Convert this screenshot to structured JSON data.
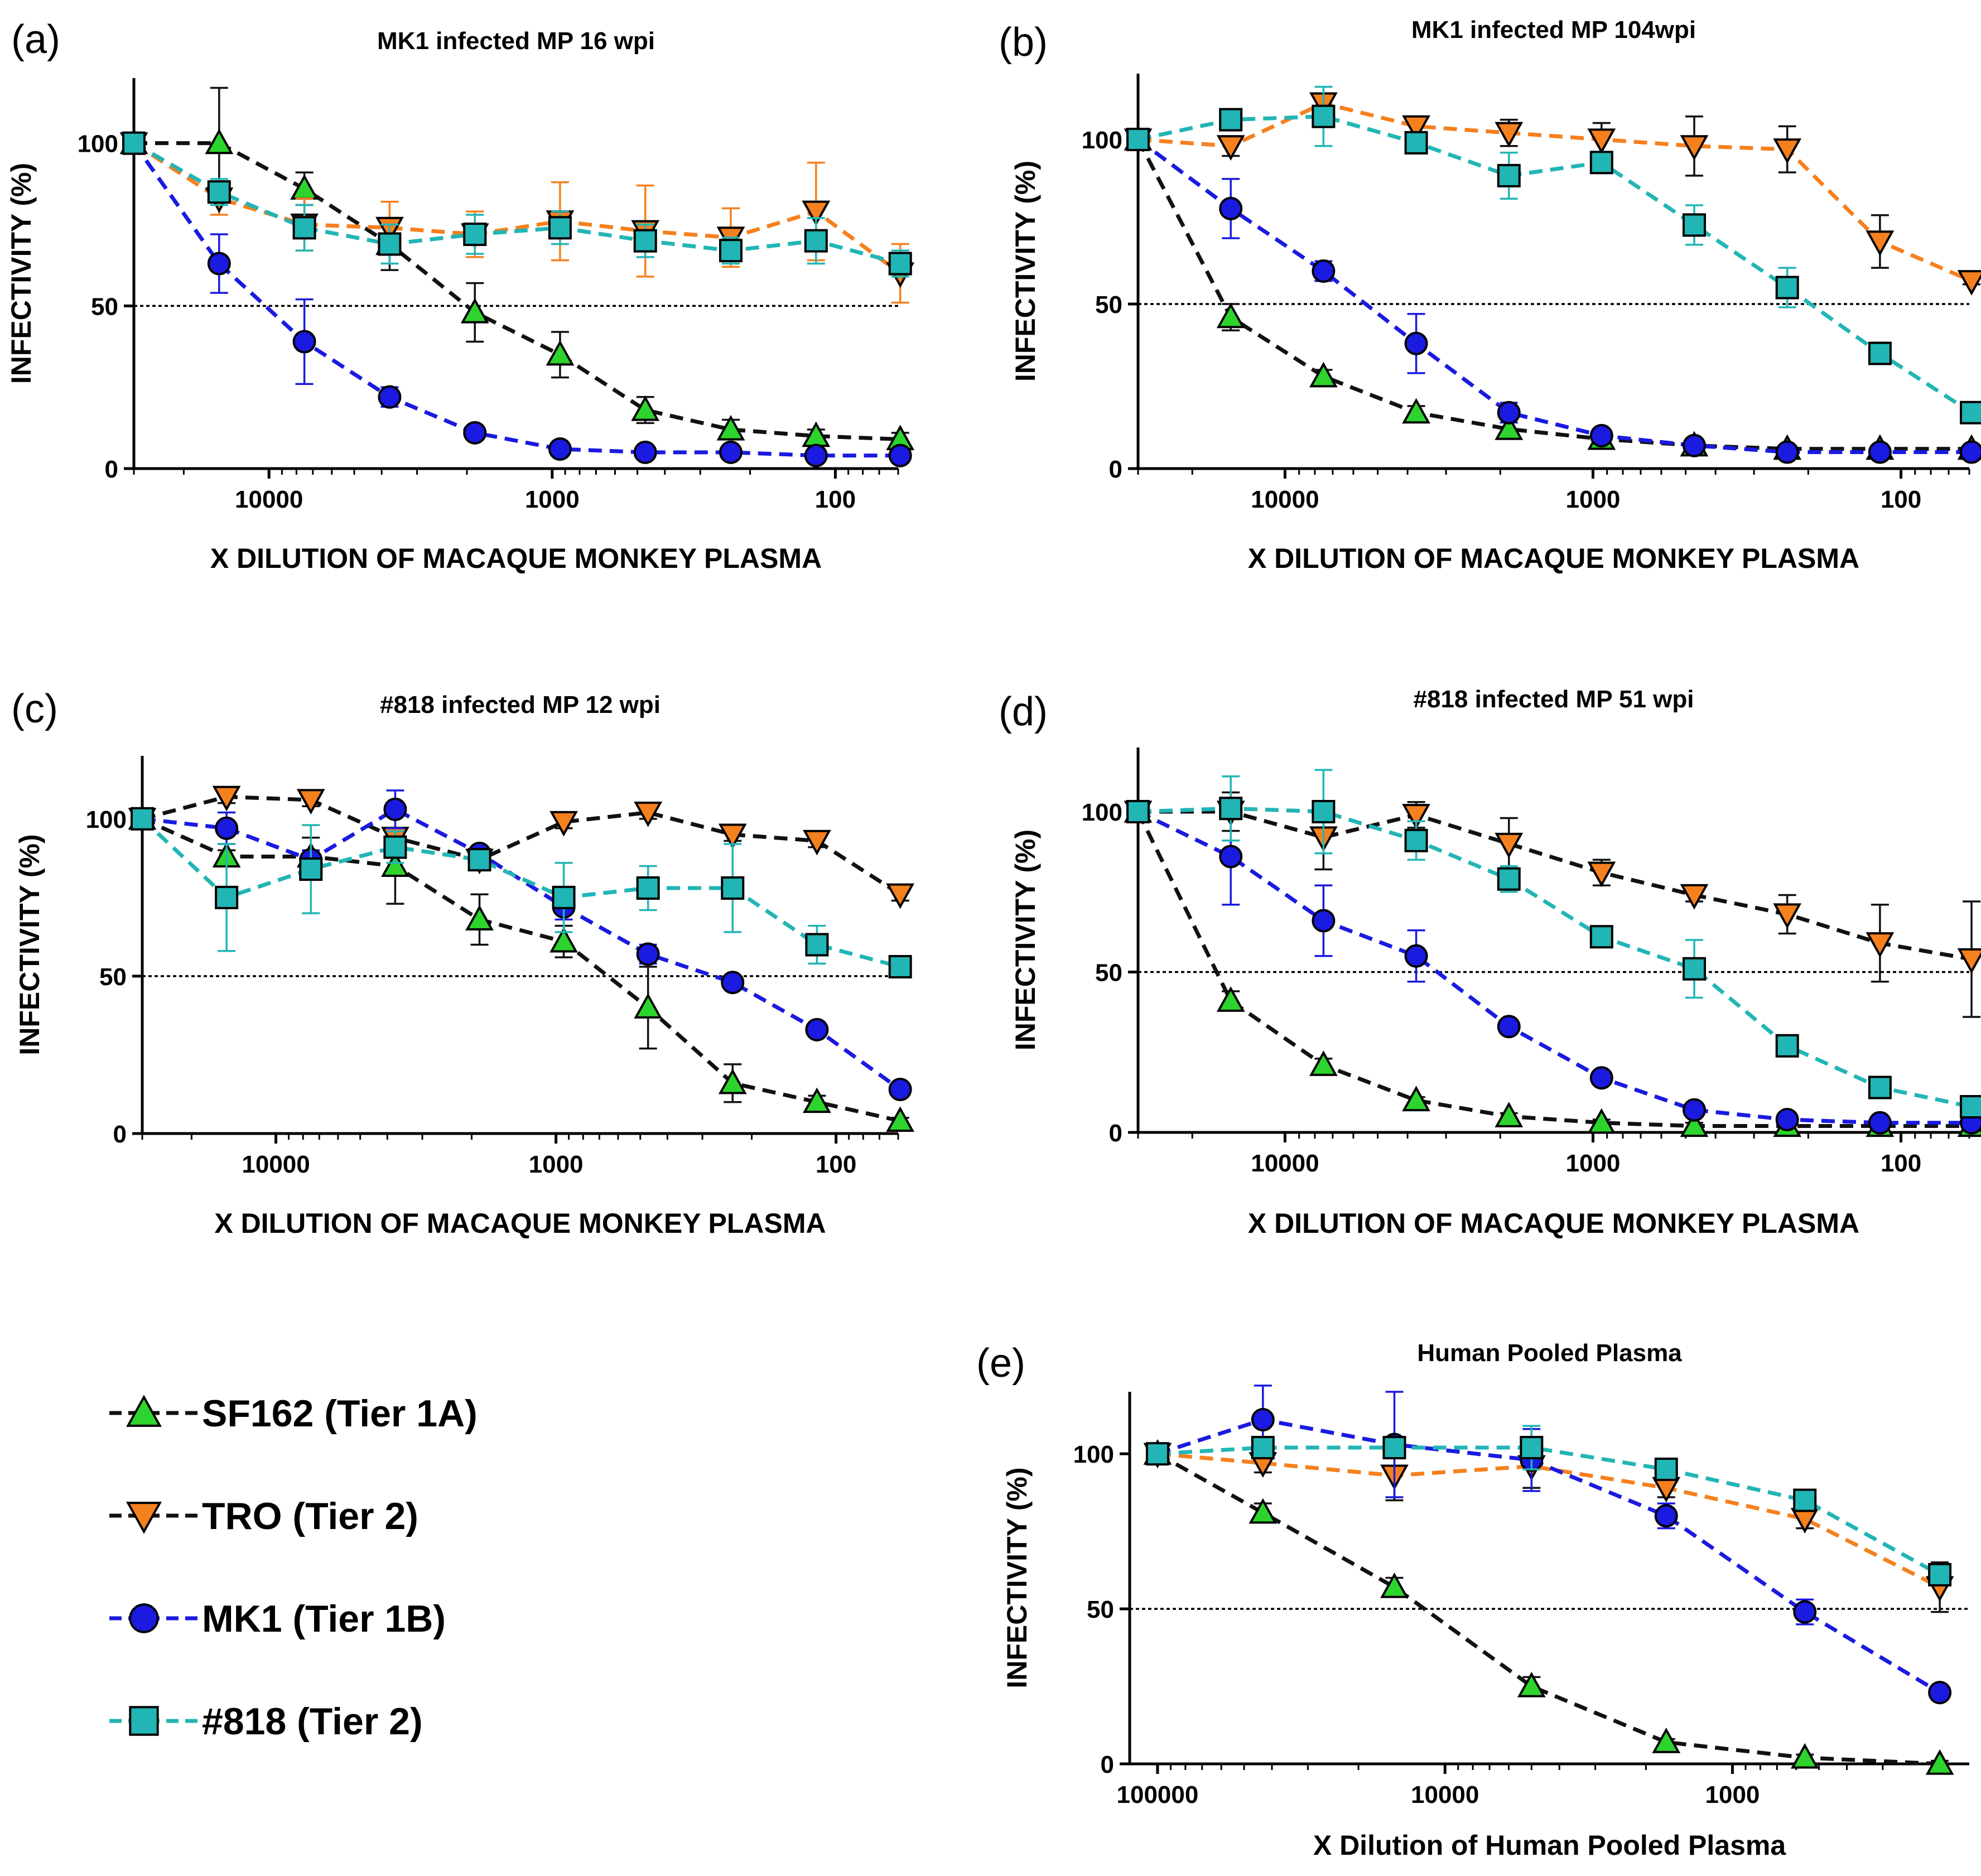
{
  "chart_data": [
    {
      "id": "a",
      "type": "line",
      "panel_label": "(a)",
      "title": "MK1 infected MP 16 wpi",
      "xlabel": "X DILUTION  OF MACAQUE MONKEY PLASMA",
      "ylabel": "INFECTIVITY (%)",
      "x_scale": "log-reversed",
      "xlim": [
        30000,
        60
      ],
      "ylim": [
        0,
        120
      ],
      "x_ticks": [
        {
          "value": 10000,
          "label": "10000"
        },
        {
          "value": 1000,
          "label": "1000"
        },
        {
          "value": 100,
          "label": "100"
        }
      ],
      "y_ticks": [
        {
          "value": 0,
          "label": "0"
        },
        {
          "value": 50,
          "label": "50"
        },
        {
          "value": 100,
          "label": "100"
        }
      ],
      "reference_line": 50,
      "x": [
        30000,
        15000,
        7500,
        3750,
        1875,
        938,
        469,
        234,
        117,
        59
      ],
      "series": [
        {
          "name": "SF162 (Tier 1A)",
          "marker": "triangle-up",
          "line_color": "#111111",
          "fill": "#2dd42d",
          "err_color": "#111111",
          "values": [
            100,
            100,
            86,
            69,
            48,
            35,
            18,
            12,
            10,
            9
          ],
          "errors": [
            0,
            17,
            5,
            8,
            9,
            7,
            4,
            3,
            2,
            2
          ]
        },
        {
          "name": "TRO (Tier 2)",
          "marker": "triangle-down",
          "line_color": "#f5801e",
          "fill": "#f5801e",
          "err_color": "#f5801e",
          "values": [
            100,
            83,
            75,
            74,
            72,
            76,
            73,
            71,
            79,
            60
          ],
          "errors": [
            0,
            5,
            8,
            8,
            7,
            12,
            14,
            9,
            15,
            9
          ]
        },
        {
          "name": "MK1 (Tier 1B)",
          "marker": "circle",
          "line_color": "#1a1ae0",
          "fill": "#1a1ae0",
          "err_color": "#1a1ae0",
          "values": [
            100,
            63,
            39,
            22,
            11,
            6,
            5,
            5,
            4,
            4
          ],
          "errors": [
            0,
            9,
            13,
            3,
            1,
            1,
            1,
            1,
            1,
            1
          ]
        },
        {
          "name": "#818 (Tier 2)",
          "marker": "square",
          "line_color": "#22b5b5",
          "fill": "#22b5b5",
          "err_color": "#22b5b5",
          "values": [
            100,
            85,
            74,
            69,
            72,
            74,
            70,
            67,
            70,
            63
          ],
          "errors": [
            0,
            4,
            7,
            6,
            6,
            5,
            5,
            4,
            7,
            4
          ]
        }
      ]
    },
    {
      "id": "b",
      "type": "line",
      "panel_label": "(b)",
      "title": "MK1 infected MP 104wpi",
      "xlabel": "X DILUTION  OF MACAQUE MONKEY PLASMA",
      "ylabel": "INFECTIVITY (%)",
      "x_scale": "log-reversed",
      "xlim": [
        30000,
        60
      ],
      "ylim": [
        0,
        120
      ],
      "x_ticks": [
        {
          "value": 10000,
          "label": "10000"
        },
        {
          "value": 1000,
          "label": "1000"
        },
        {
          "value": 100,
          "label": "100"
        }
      ],
      "y_ticks": [
        {
          "value": 0,
          "label": "0"
        },
        {
          "value": 50,
          "label": "50"
        },
        {
          "value": 100,
          "label": "100"
        }
      ],
      "reference_line": 50,
      "x": [
        30000,
        15000,
        7500,
        3750,
        1875,
        938,
        469,
        234,
        117,
        59
      ],
      "series": [
        {
          "name": "SF162 (Tier 1A)",
          "marker": "triangle-up",
          "line_color": "#111111",
          "fill": "#2dd42d",
          "err_color": "#111111",
          "values": [
            100,
            46,
            28,
            17,
            12,
            9,
            7,
            6,
            6,
            6
          ],
          "errors": [
            0,
            4,
            2,
            2,
            2,
            1,
            1,
            1,
            1,
            1
          ]
        },
        {
          "name": "TRO (Tier 2)",
          "marker": "triangle-down",
          "line_color": "#f5801e",
          "fill": "#f5801e",
          "err_color": "#111111",
          "values": [
            100,
            98,
            111,
            104,
            102,
            100,
            98,
            97,
            69,
            57
          ],
          "errors": [
            0,
            3,
            3,
            3,
            4,
            5,
            9,
            7,
            8,
            1
          ]
        },
        {
          "name": "MK1 (Tier 1B)",
          "marker": "circle",
          "line_color": "#1a1ae0",
          "fill": "#1a1ae0",
          "err_color": "#1a1ae0",
          "values": [
            100,
            79,
            60,
            38,
            17,
            10,
            7,
            5,
            5,
            5
          ],
          "errors": [
            0,
            9,
            3,
            9,
            3,
            1,
            1,
            1,
            1,
            1
          ]
        },
        {
          "name": "#818 (Tier 2)",
          "marker": "square",
          "line_color": "#22b5b5",
          "fill": "#22b5b5",
          "err_color": "#22b5b5",
          "values": [
            100,
            106,
            107,
            99,
            89,
            93,
            74,
            55,
            35,
            17
          ],
          "errors": [
            0,
            2,
            9,
            3,
            7,
            3,
            6,
            6,
            2,
            1
          ]
        }
      ]
    },
    {
      "id": "c",
      "type": "line",
      "panel_label": "(c)",
      "title": "#818 infected MP 12 wpi",
      "xlabel": "X DILUTION  OF MACAQUE MONKEY PLASMA",
      "ylabel": "INFECTIVITY (%)",
      "x_scale": "log-reversed",
      "xlim": [
        30000,
        60
      ],
      "ylim": [
        0,
        120
      ],
      "x_ticks": [
        {
          "value": 10000,
          "label": "10000"
        },
        {
          "value": 1000,
          "label": "1000"
        },
        {
          "value": 100,
          "label": "100"
        }
      ],
      "y_ticks": [
        {
          "value": 0,
          "label": "0"
        },
        {
          "value": 50,
          "label": "50"
        },
        {
          "value": 100,
          "label": "100"
        }
      ],
      "reference_line": 50,
      "x": [
        30000,
        15000,
        7500,
        3750,
        1875,
        938,
        469,
        234,
        117,
        59
      ],
      "series": [
        {
          "name": "SF162 (Tier 1A)",
          "marker": "triangle-up",
          "line_color": "#111111",
          "fill": "#2dd42d",
          "err_color": "#111111",
          "values": [
            100,
            88,
            88,
            85,
            68,
            61,
            40,
            16,
            10,
            4
          ],
          "errors": [
            0,
            2,
            6,
            12,
            8,
            5,
            13,
            6,
            2,
            1
          ]
        },
        {
          "name": "TRO (Tier 2)",
          "marker": "triangle-down",
          "line_color": "#111111",
          "fill": "#f5801e",
          "err_color": "#111111",
          "values": [
            100,
            107,
            106,
            94,
            87,
            99,
            102,
            95,
            93,
            76
          ],
          "errors": [
            0,
            2,
            2,
            3,
            2,
            2,
            2,
            2,
            2,
            2
          ]
        },
        {
          "name": "MK1 (Tier 1B)",
          "marker": "circle",
          "line_color": "#1a1ae0",
          "fill": "#1a1ae0",
          "err_color": "#1a1ae0",
          "values": [
            100,
            97,
            87,
            103,
            89,
            72,
            57,
            48,
            33,
            14
          ],
          "errors": [
            0,
            5,
            3,
            6,
            2,
            4,
            3,
            2,
            2,
            1
          ]
        },
        {
          "name": "#818 (Tier 2)",
          "marker": "square",
          "line_color": "#22b5b5",
          "fill": "#22b5b5",
          "err_color": "#22b5b5",
          "values": [
            100,
            75,
            84,
            91,
            87,
            75,
            78,
            78,
            60,
            53
          ],
          "errors": [
            0,
            17,
            14,
            5,
            3,
            11,
            7,
            14,
            6,
            2
          ]
        }
      ]
    },
    {
      "id": "d",
      "type": "line",
      "panel_label": "(d)",
      "title": "#818 infected MP 51 wpi",
      "xlabel": "X DILUTION  OF MACAQUE MONKEY PLASMA",
      "ylabel": "INFECTIVITY (%)",
      "x_scale": "log-reversed",
      "xlim": [
        30000,
        60
      ],
      "ylim": [
        0,
        120
      ],
      "x_ticks": [
        {
          "value": 10000,
          "label": "10000"
        },
        {
          "value": 1000,
          "label": "1000"
        },
        {
          "value": 100,
          "label": "100"
        }
      ],
      "y_ticks": [
        {
          "value": 0,
          "label": "0"
        },
        {
          "value": 50,
          "label": "50"
        },
        {
          "value": 100,
          "label": "100"
        }
      ],
      "reference_line": 50,
      "x": [
        30000,
        15000,
        7500,
        3750,
        1875,
        938,
        469,
        234,
        117,
        59
      ],
      "series": [
        {
          "name": "SF162 (Tier 1A)",
          "marker": "triangle-up",
          "line_color": "#111111",
          "fill": "#2dd42d",
          "err_color": "#111111",
          "values": [
            100,
            41,
            21,
            10,
            5,
            3,
            2,
            2,
            2,
            2
          ],
          "errors": [
            0,
            3,
            2,
            1,
            1,
            1,
            1,
            1,
            1,
            1
          ]
        },
        {
          "name": "TRO (Tier 2)",
          "marker": "triangle-down",
          "line_color": "#111111",
          "fill": "#f5801e",
          "err_color": "#111111",
          "values": [
            100,
            100,
            92,
            99,
            90,
            81,
            74,
            68,
            59,
            54
          ],
          "errors": [
            0,
            6,
            10,
            4,
            8,
            4,
            2,
            6,
            12,
            18
          ]
        },
        {
          "name": "MK1 (Tier 1B)",
          "marker": "circle",
          "line_color": "#1a1ae0",
          "fill": "#1a1ae0",
          "err_color": "#1a1ae0",
          "values": [
            100,
            86,
            66,
            55,
            33,
            17,
            7,
            4,
            3,
            3
          ],
          "errors": [
            0,
            15,
            11,
            8,
            2,
            1,
            1,
            1,
            1,
            1
          ]
        },
        {
          "name": "#818 (Tier 2)",
          "marker": "square",
          "line_color": "#22b5b5",
          "fill": "#22b5b5",
          "err_color": "#22b5b5",
          "values": [
            100,
            101,
            100,
            91,
            79,
            61,
            51,
            27,
            14,
            8
          ],
          "errors": [
            0,
            10,
            13,
            6,
            4,
            2,
            9,
            2,
            2,
            1
          ]
        }
      ]
    },
    {
      "id": "e",
      "type": "line",
      "panel_label": "(e)",
      "title": "Human Pooled Plasma",
      "xlabel": "X  Dilution of Human Pooled Plasma",
      "ylabel": "INFECTIVITY (%)",
      "x_scale": "log-reversed",
      "xlim": [
        125000,
        150
      ],
      "ylim": [
        0,
        120
      ],
      "x_ticks": [
        {
          "value": 100000,
          "label": "100000"
        },
        {
          "value": 10000,
          "label": "10000"
        },
        {
          "value": 1000,
          "label": "1000"
        }
      ],
      "y_ticks": [
        {
          "value": 0,
          "label": "0"
        },
        {
          "value": 50,
          "label": "50"
        },
        {
          "value": 100,
          "label": "100"
        }
      ],
      "reference_line": 50,
      "x": [
        100000,
        43000,
        15000,
        5000,
        1700,
        560,
        190
      ],
      "series": [
        {
          "name": "SF162 (Tier 1A)",
          "marker": "triangle-up",
          "line_color": "#111111",
          "fill": "#2dd42d",
          "err_color": "#111111",
          "values": [
            100,
            81,
            57,
            25,
            7,
            2,
            0
          ],
          "errors": [
            0,
            3,
            3,
            3,
            1,
            1,
            1
          ]
        },
        {
          "name": "TRO (Tier 2)",
          "marker": "triangle-down",
          "line_color": "#f5801e",
          "fill": "#f5801e",
          "err_color": "#111111",
          "values": [
            100,
            97,
            93,
            96,
            89,
            79,
            57
          ],
          "errors": [
            0,
            3,
            8,
            7,
            3,
            3,
            8
          ]
        },
        {
          "name": "MK1 (Tier 1B)",
          "marker": "circle",
          "line_color": "#1a1ae0",
          "fill": "#1a1ae0",
          "err_color": "#1a1ae0",
          "values": [
            100,
            111,
            103,
            98,
            80,
            49,
            23
          ],
          "errors": [
            0,
            11,
            17,
            10,
            4,
            4,
            1
          ]
        },
        {
          "name": "#818 (Tier 2)",
          "marker": "square",
          "line_color": "#22b5b5",
          "fill": "#22b5b5",
          "err_color": "#22b5b5",
          "values": [
            100,
            102,
            102,
            102,
            95,
            85,
            61
          ],
          "errors": [
            0,
            3,
            3,
            7,
            2,
            2,
            2
          ]
        }
      ]
    }
  ],
  "legend": [
    {
      "name": "SF162 (Tier 1A)",
      "marker": "triangle-up",
      "line_color": "#111111",
      "fill": "#2dd42d"
    },
    {
      "name": "TRO (Tier 2)",
      "marker": "triangle-down",
      "line_color": "#111111",
      "fill": "#f5801e"
    },
    {
      "name": "MK1 (Tier 1B)",
      "marker": "circle",
      "line_color": "#1a1ae0",
      "fill": "#1a1ae0"
    },
    {
      "name": "#818 (Tier 2)",
      "marker": "square",
      "line_color": "#22b5b5",
      "fill": "#22b5b5"
    }
  ]
}
